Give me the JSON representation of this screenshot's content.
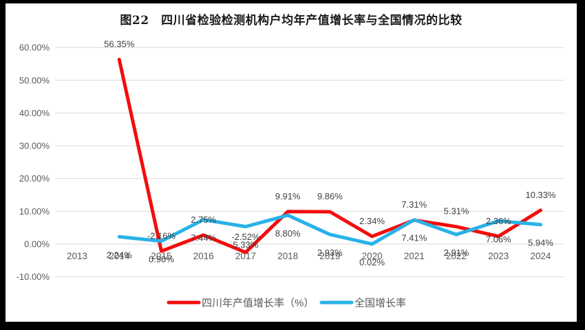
{
  "chart_data": {
    "type": "line",
    "title": "图22　四川省检验检测机构户均年产值增长率与全国情况的比较",
    "categories": [
      "2013",
      "2014",
      "2015",
      "2016",
      "2017",
      "2018",
      "2019",
      "2020",
      "2021",
      "2022",
      "2023",
      "2024"
    ],
    "series": [
      {
        "key": "sichuan-growth",
        "name": "四川年产值增长率（%）",
        "color": "#f20d0d",
        "values": [
          null,
          56.35,
          -2.16,
          2.75,
          -2.52,
          9.91,
          9.86,
          2.34,
          7.31,
          5.31,
          2.36,
          10.33
        ]
      },
      {
        "key": "national-growth",
        "name": "全国增长率",
        "color": "#29b2e8",
        "values": [
          null,
          2.24,
          0.9,
          7.44,
          5.33,
          8.8,
          2.93,
          0.02,
          7.41,
          2.91,
          7.06,
          5.94
        ]
      }
    ],
    "data_label_format": "0.00%",
    "y_axis": {
      "min": -10,
      "max": 60,
      "step": 10,
      "tick_labels": [
        "60.00%",
        "50.00%",
        "40.00%",
        "30.00%",
        "20.00%",
        "10.00%",
        "0.00%",
        "-10.00%"
      ]
    },
    "grid": true,
    "legend_position": "bottom"
  },
  "colors": {
    "frame": "#000000",
    "canvas": "#ffffff",
    "gridline": "#d9d9d9",
    "axis_text": "#595959",
    "data_label_text": "#3f3f3f",
    "title_text": "#1a1a1a"
  }
}
